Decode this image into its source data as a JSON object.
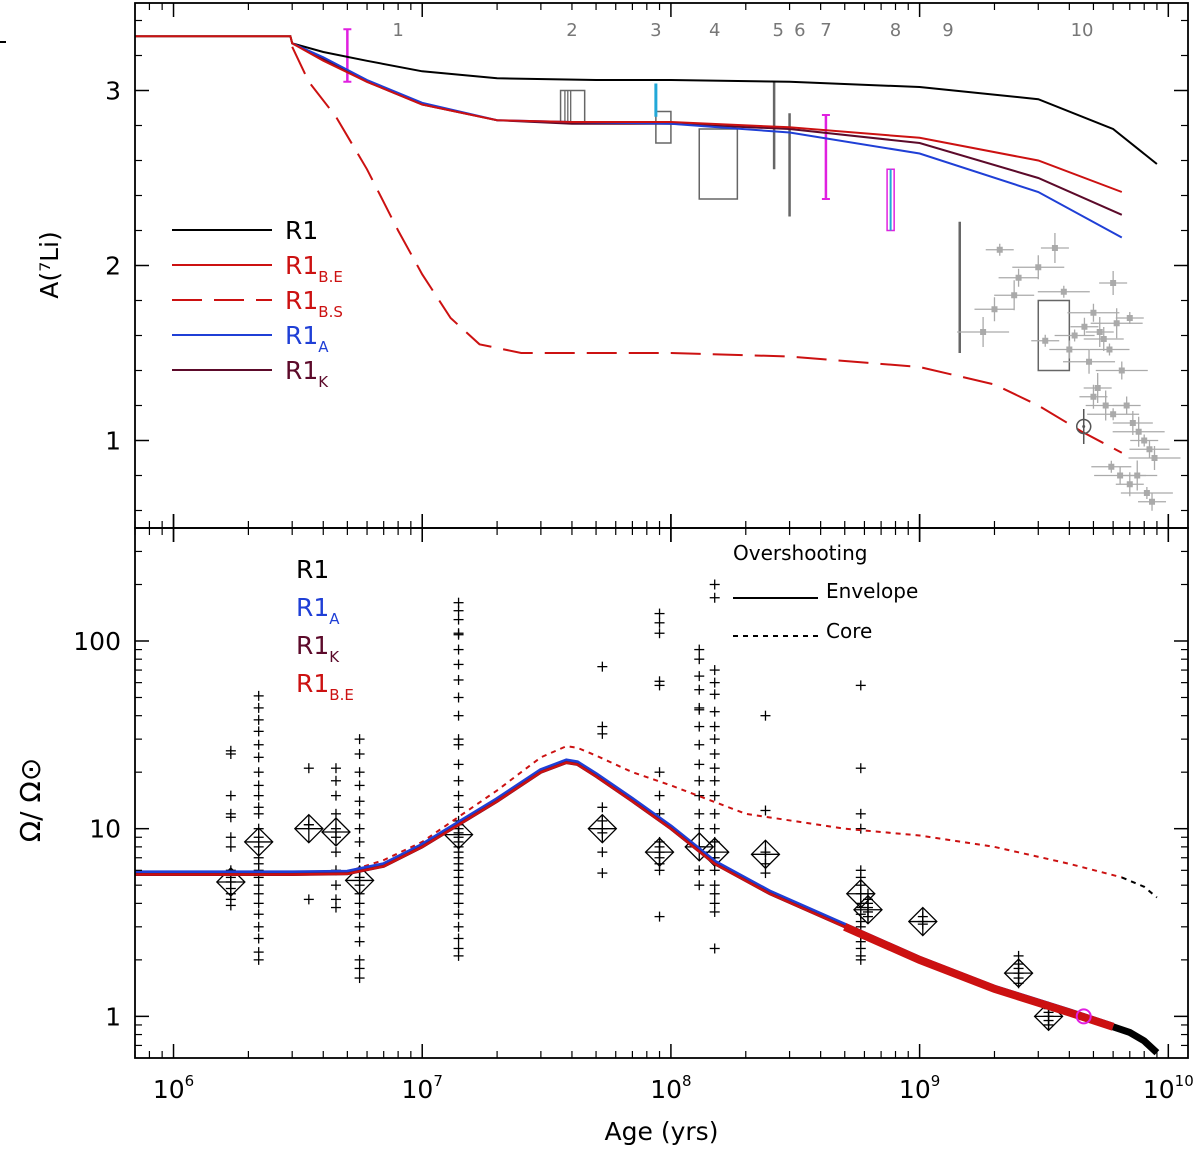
{
  "chart_data": [
    {
      "type": "line",
      "panel": "top",
      "ylabel": "A(⁷Li)",
      "xlabel": "",
      "x_scale": "log",
      "xlim": [
        700000,
        12000000000
      ],
      "ylim": [
        0.5,
        3.5
      ],
      "yticks": [
        1,
        2,
        3
      ],
      "ytick_labels": [
        "1",
        "2",
        "3"
      ],
      "legend_placement": "left",
      "legend": [
        {
          "label": "R1",
          "sub": "",
          "color": "#000000",
          "dash": false
        },
        {
          "label": "R1",
          "sub": "B.E",
          "color": "#cc1111",
          "dash": false
        },
        {
          "label": "R1",
          "sub": "B.S",
          "color": "#cc1111",
          "dash": true
        },
        {
          "label": "R1",
          "sub": "A",
          "color": "#1f3fd6",
          "dash": false
        },
        {
          "label": "R1",
          "sub": "K",
          "color": "#5c0a2a",
          "dash": false
        }
      ],
      "cluster_labels": [
        {
          "text": "1",
          "x": 8000000
        },
        {
          "text": "2",
          "x": 40000000
        },
        {
          "text": "3",
          "x": 87000000
        },
        {
          "text": "4",
          "x": 150000000
        },
        {
          "text": "5",
          "x": 270000000
        },
        {
          "text": "6",
          "x": 330000000
        },
        {
          "text": "7",
          "x": 420000000
        },
        {
          "text": "8",
          "x": 800000000
        },
        {
          "text": "9",
          "x": 1300000000
        },
        {
          "text": "10",
          "x": 4500000000
        }
      ],
      "series": [
        {
          "color": "#000000",
          "dash": false,
          "x": [
            700000,
            2950000,
            3000000,
            4000000,
            6000000,
            10000000,
            20000000,
            50000000,
            100000000,
            300000000,
            1000000000,
            3000000000,
            6000000000,
            9000000000
          ],
          "y": [
            3.31,
            3.31,
            3.27,
            3.22,
            3.17,
            3.11,
            3.07,
            3.06,
            3.06,
            3.05,
            3.02,
            2.95,
            2.78,
            2.58
          ]
        },
        {
          "color": "#5c0a2a",
          "dash": false,
          "x": [
            3000000,
            4000000,
            6000000,
            10000000,
            20000000,
            40000000,
            100000000,
            300000000,
            1000000000,
            3000000000,
            6500000000
          ],
          "y": [
            3.27,
            3.18,
            3.05,
            2.92,
            2.83,
            2.81,
            2.81,
            2.78,
            2.7,
            2.5,
            2.29
          ]
        },
        {
          "color": "#1f3fd6",
          "dash": false,
          "x": [
            3000000,
            4000000,
            6000000,
            10000000,
            20000000,
            40000000,
            100000000,
            300000000,
            1000000000,
            3000000000,
            6500000000
          ],
          "y": [
            3.27,
            3.19,
            3.06,
            2.93,
            2.83,
            2.82,
            2.81,
            2.76,
            2.64,
            2.42,
            2.16
          ]
        },
        {
          "color": "#cc1111",
          "dash": false,
          "x": [
            700000,
            2950000,
            3000000,
            4000000,
            6000000,
            10000000,
            20000000,
            40000000,
            100000000,
            300000000,
            1000000000,
            3000000000,
            6500000000
          ],
          "y": [
            3.31,
            3.31,
            3.27,
            3.17,
            3.05,
            2.92,
            2.83,
            2.82,
            2.82,
            2.79,
            2.73,
            2.6,
            2.42
          ]
        },
        {
          "color": "#cc1111",
          "dash": true,
          "x": [
            3000000,
            3500000,
            4500000,
            6000000,
            8000000,
            10000000,
            13000000,
            17000000,
            25000000,
            50000000,
            100000000,
            300000000,
            1000000000,
            2000000000,
            3000000000,
            4500000000,
            6500000000
          ],
          "y": [
            3.25,
            3.05,
            2.85,
            2.55,
            2.2,
            1.95,
            1.7,
            1.55,
            1.5,
            1.5,
            1.5,
            1.48,
            1.42,
            1.32,
            1.2,
            1.05,
            0.93
          ]
        }
      ],
      "magenta_bars": [
        {
          "x": 5000000,
          "ylo": 3.05,
          "yhi": 3.35
        },
        {
          "x": 420000000,
          "ylo": 2.38,
          "yhi": 2.86
        }
      ],
      "cyan_bars": [
        {
          "x": 87000000,
          "ylo": 2.85,
          "yhi": 3.04
        }
      ],
      "gray_vlines": [
        {
          "x": 260000000,
          "ylo": 2.55,
          "yhi": 3.05
        },
        {
          "x": 300000000,
          "ylo": 2.28,
          "yhi": 2.87
        },
        {
          "x": 1450000000,
          "ylo": 1.5,
          "yhi": 2.25
        }
      ],
      "gray_boxes": [
        {
          "x1": 36000000,
          "x2": 45000000,
          "ylo": 2.82,
          "yhi": 3.0
        },
        {
          "x1": 87000000,
          "x2": 100000000,
          "ylo": 2.7,
          "yhi": 2.88
        },
        {
          "x1": 130000000,
          "x2": 185000000,
          "ylo": 2.38,
          "yhi": 2.78
        },
        {
          "x1": 3000000000,
          "x2": 4000000000,
          "ylo": 1.4,
          "yhi": 1.8
        }
      ],
      "magenta_box": {
        "x1": 740000000,
        "x2": 790000000,
        "ylo": 2.2,
        "yhi": 2.55
      },
      "sun_point": {
        "x": 4570000000,
        "y": 1.08,
        "err": 0.1
      },
      "field_stars": {
        "x": [
          2100000000,
          2500000000,
          3000000000,
          3500000000,
          4200000000,
          5000000000,
          6000000000,
          2400000000,
          3800000000,
          4600000000,
          5500000000,
          6200000000,
          7000000000,
          4000000000,
          4800000000,
          5300000000,
          5800000000,
          6500000000,
          5000000000,
          5600000000,
          6000000000,
          6800000000,
          7200000000,
          7600000000,
          8000000000,
          8400000000,
          8800000000,
          5200000000,
          5900000000,
          6400000000,
          7000000000,
          7500000000,
          8200000000,
          8600000000,
          2000000000,
          1800000000,
          3200000000
        ],
        "y": [
          2.09,
          1.93,
          1.99,
          2.1,
          1.6,
          1.73,
          1.9,
          1.83,
          1.85,
          1.65,
          1.58,
          1.67,
          1.7,
          1.52,
          1.45,
          1.62,
          1.52,
          1.4,
          1.25,
          1.2,
          1.15,
          1.2,
          1.1,
          1.05,
          1.0,
          0.95,
          0.9,
          1.3,
          0.85,
          0.8,
          0.75,
          0.8,
          0.7,
          0.65,
          1.75,
          1.62,
          1.57
        ]
      },
      "overshooting_title": "Overshooting",
      "envelope_label": "Envelope",
      "core_label": "Core"
    },
    {
      "type": "scatter",
      "panel": "bottom",
      "ylabel": "Ω/ Ω⊙",
      "xlabel": "Age (yrs)",
      "x_scale": "log",
      "y_scale": "log",
      "xlim": [
        700000,
        12000000000
      ],
      "ylim": [
        0.6,
        400
      ],
      "yticks": [
        1,
        10,
        100
      ],
      "ytick_labels": [
        "1",
        "10",
        "100"
      ],
      "xticks": [
        1000000,
        10000000,
        100000000,
        1000000000,
        10000000000
      ],
      "xtick_base": "10",
      "xtick_exponents": [
        "6",
        "7",
        "8",
        "9",
        "10"
      ],
      "legend": [
        {
          "label": "R1",
          "sub": "",
          "color": "#000000"
        },
        {
          "label": "R1",
          "sub": "A",
          "color": "#1f3fd6"
        },
        {
          "label": "R1",
          "sub": "K",
          "color": "#5c0a2a"
        },
        {
          "label": "R1",
          "sub": "B.E",
          "color": "#cc1111"
        }
      ],
      "overshooting_legend": {
        "title": "Overshooting",
        "solid": "Envelope",
        "dotted": "Core"
      },
      "envelope_curve": {
        "color": "#cc1111",
        "x": [
          700000,
          3000000,
          5000000,
          7000000,
          10000000,
          20000000,
          30000000,
          38000000,
          42000000,
          50000000,
          70000000,
          100000000,
          150000000,
          250000000,
          500000000,
          1000000000,
          2000000000,
          4000000000,
          6000000000
        ],
        "y": [
          5.7,
          5.7,
          5.75,
          6.3,
          8.0,
          14.0,
          20.0,
          22.5,
          22.0,
          19.0,
          14.0,
          10.0,
          6.5,
          4.5,
          3.0,
          2.0,
          1.4,
          1.05,
          0.88
        ]
      },
      "old_curve": {
        "color": "#000000",
        "x": [
          6000000000,
          7000000000,
          8000000000,
          9000000000
        ],
        "y": [
          0.88,
          0.82,
          0.74,
          0.64
        ]
      },
      "core_curve": {
        "color": "#cc1111",
        "x": [
          700000,
          3000000,
          5000000,
          7000000,
          10000000,
          20000000,
          30000000,
          38000000,
          42000000,
          50000000,
          70000000,
          100000000,
          200000000,
          500000000,
          1000000000,
          2000000000,
          4000000000,
          6500000000
        ],
        "y": [
          5.8,
          5.8,
          5.9,
          6.8,
          8.5,
          16.0,
          24.0,
          27.5,
          27.0,
          24.5,
          20.0,
          17.0,
          12.0,
          10.0,
          9.2,
          8.0,
          6.5,
          5.5
        ]
      },
      "core_old": {
        "color": "#000000",
        "x": [
          6500000000,
          8000000000,
          9000000000
        ],
        "y": [
          5.5,
          4.9,
          4.3
        ]
      },
      "clusters": [
        {
          "age": 1700000,
          "median": 5.2,
          "p": [
            26,
            25,
            15,
            12,
            11.5,
            9,
            8,
            6,
            5.5,
            5.2,
            4.8,
            4.5,
            4.2,
            3.9
          ]
        },
        {
          "age": 2200000,
          "median": 8.5,
          "p": [
            51,
            44,
            38,
            33,
            28,
            24,
            20,
            17,
            15,
            13,
            12,
            10,
            9,
            8,
            7,
            6.5,
            6,
            5.5,
            5,
            4.5,
            4,
            3.5,
            3,
            2.6,
            2.2,
            2.0
          ]
        },
        {
          "age": 3500000,
          "median": 10,
          "p": [
            21,
            10.5,
            10.5,
            4.2
          ]
        },
        {
          "age": 4500000,
          "median": 9.6,
          "p": [
            21,
            18,
            15,
            12,
            10,
            9,
            7.5,
            6,
            5,
            4.2,
            3.8
          ]
        },
        {
          "age": 5600000,
          "median": 5.3,
          "p": [
            30,
            25,
            20,
            17,
            14,
            12,
            10,
            8.5,
            7,
            6,
            5.5,
            5,
            4.5,
            4,
            3.5,
            3,
            2.5,
            2,
            1.8,
            1.6
          ]
        },
        {
          "age": 14000000,
          "median": 9.3,
          "p": [
            160,
            145,
            130,
            110,
            108,
            90,
            75,
            62,
            50,
            40,
            30,
            28,
            22,
            18,
            15,
            13,
            11,
            10.5,
            10,
            9.5,
            9,
            8.5,
            8,
            7.5,
            7,
            6.5,
            6,
            5.5,
            5,
            4.5,
            4,
            3.5,
            3,
            2.6,
            2.3,
            2.1
          ]
        },
        {
          "age": 53000000,
          "median": 10,
          "p": [
            73,
            35,
            32,
            13,
            11,
            10,
            9.5,
            7.5,
            5.8
          ]
        },
        {
          "age": 90000000,
          "median": 7.5,
          "p": [
            140,
            125,
            110,
            61,
            58,
            20,
            15,
            12,
            8.5,
            8,
            7.5,
            7,
            6.5,
            6,
            3.4
          ]
        },
        {
          "age": 130000000,
          "median": 8,
          "p": [
            90,
            80,
            65,
            55,
            44,
            43,
            35,
            28,
            22,
            18,
            15,
            12,
            10,
            8,
            6,
            5
          ]
        },
        {
          "age": 150000000,
          "median": 7.5,
          "p": [
            200,
            170,
            70,
            60,
            52,
            42,
            35,
            30,
            25,
            21,
            18,
            15,
            12,
            10,
            8.5,
            7,
            6,
            5,
            4.5,
            4,
            3.6,
            2.3
          ]
        },
        {
          "age": 240000000,
          "median": 7.3,
          "p": [
            40,
            12.5,
            7.5,
            6.5,
            5.8
          ]
        },
        {
          "age": 580000000,
          "median": 4.5,
          "p": [
            58,
            21,
            12,
            10,
            6,
            5.5,
            5,
            4.5,
            4,
            3.8,
            3.5,
            3.2,
            3,
            2.7,
            2.5,
            2.3,
            2.1,
            2.0
          ]
        },
        {
          "age": 620000000,
          "median": 3.7,
          "p": [
            4.5,
            4.2,
            4,
            3.8,
            3.6,
            3.4
          ]
        },
        {
          "age": 1030000000,
          "median": 3.2,
          "p": [
            3.4,
            3.2,
            3.1
          ]
        },
        {
          "age": 2500000000,
          "median": 1.7,
          "p": [
            2.1,
            1.9,
            1.8,
            1.7,
            1.6,
            1.5
          ]
        },
        {
          "age": 3300000000,
          "median": 1.0,
          "p": [
            1.1,
            1.05,
            1.0,
            0.95,
            0.9
          ]
        }
      ],
      "sun": {
        "x": 4570000000,
        "y": 1.0
      }
    }
  ]
}
